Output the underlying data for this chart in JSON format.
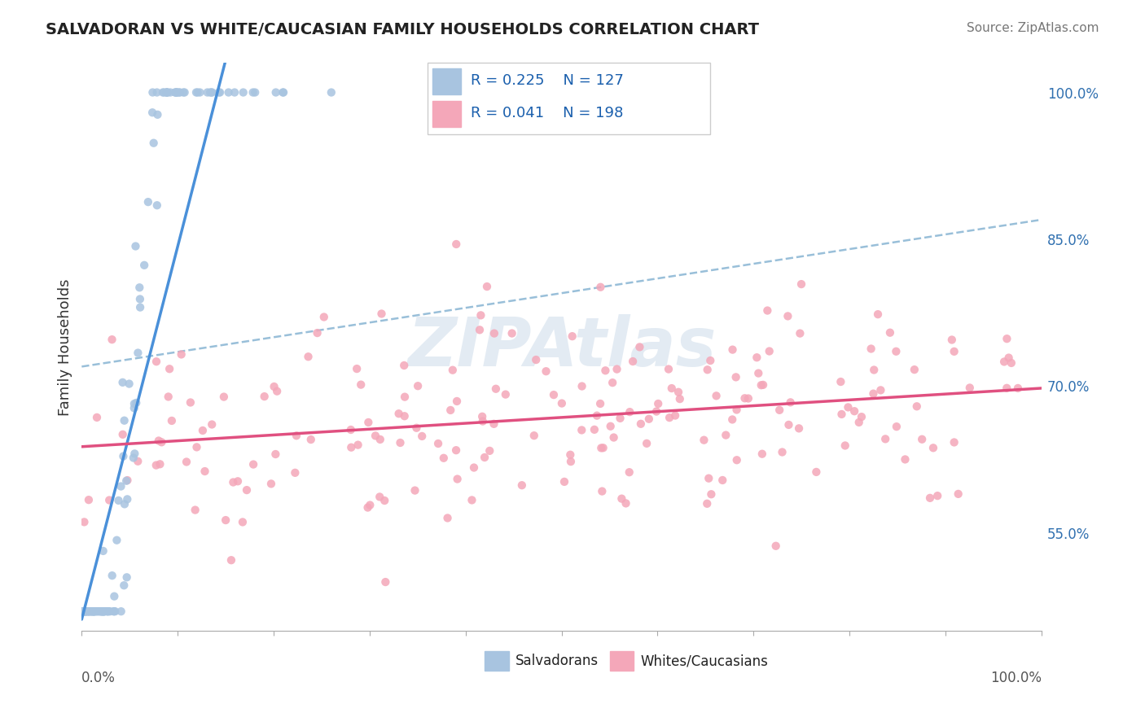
{
  "title": "SALVADORAN VS WHITE/CAUCASIAN FAMILY HOUSEHOLDS CORRELATION CHART",
  "source": "Source: ZipAtlas.com",
  "ylabel": "Family Households",
  "yticks": [
    "55.0%",
    "70.0%",
    "85.0%",
    "100.0%"
  ],
  "ytick_values": [
    0.55,
    0.7,
    0.85,
    1.0
  ],
  "xlim": [
    0.0,
    1.0
  ],
  "ylim": [
    0.45,
    1.03
  ],
  "salvadoran_color": "#a8c4e0",
  "white_color": "#f4a7b9",
  "trend_blue": "#4a90d9",
  "trend_pink": "#e05080",
  "trend_dashed": "#80b0d0",
  "watermark": "ZIPAtlas",
  "watermark_color": "#c8d8e8",
  "background_color": "#ffffff",
  "grid_color": "#d0d8e0",
  "salvadoran_seed": 42,
  "white_seed": 123,
  "N_salv": 127,
  "N_white": 198,
  "R_salv": 0.225,
  "R_white": 0.041
}
